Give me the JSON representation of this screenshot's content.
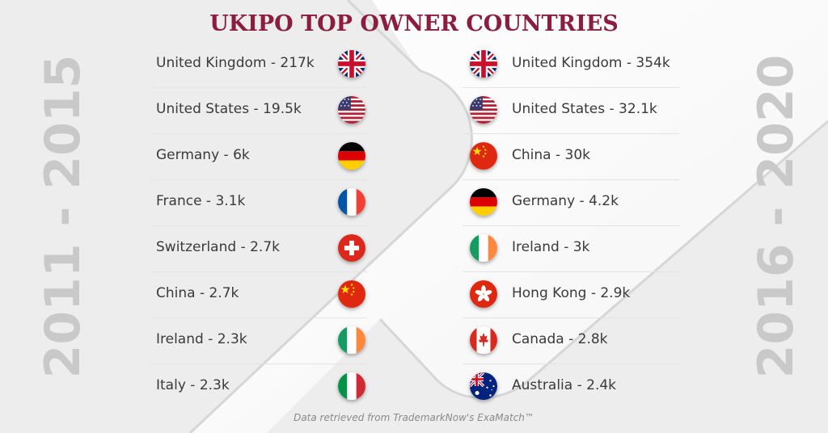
{
  "title": "UKIPO TOP OWNER COUNTRIES",
  "left_period": "2011 - 2015",
  "right_period": "2016 - 2020",
  "left_list": [
    {
      "label": "United Kingdom - 217k",
      "flag": "uk-flag-icon"
    },
    {
      "label": "United States - 19.5k",
      "flag": "us-flag-icon"
    },
    {
      "label": "Germany - 6k",
      "flag": "germany-flag-icon"
    },
    {
      "label": "France - 3.1k",
      "flag": "france-flag-icon"
    },
    {
      "label": "Switzerland - 2.7k",
      "flag": "switzerland-flag-icon"
    },
    {
      "label": "China - 2.7k",
      "flag": "china-flag-icon"
    },
    {
      "label": "Ireland - 2.3k",
      "flag": "ireland-flag-icon"
    },
    {
      "label": "Italy - 2.3k",
      "flag": "italy-flag-icon"
    }
  ],
  "right_list": [
    {
      "label": "United Kingdom - 354k",
      "flag": "uk-flag-icon"
    },
    {
      "label": "United States - 32.1k",
      "flag": "us-flag-icon"
    },
    {
      "label": "China - 30k",
      "flag": "china-flag-icon"
    },
    {
      "label": "Germany - 4.2k",
      "flag": "germany-flag-icon"
    },
    {
      "label": "Ireland - 3k",
      "flag": "ireland-flag-icon"
    },
    {
      "label": "Hong Kong - 2.9k",
      "flag": "hongkong-flag-icon"
    },
    {
      "label": "Canada - 2.8k",
      "flag": "canada-flag-icon"
    },
    {
      "label": "Australia - 2.4k",
      "flag": "australia-flag-icon"
    }
  ],
  "footnote": "Data retrieved from TrademarkNow's ExaMatch™",
  "colors": {
    "title": "#8b1d3f",
    "period": "#c9c9c9",
    "text": "#3a3a3a"
  }
}
